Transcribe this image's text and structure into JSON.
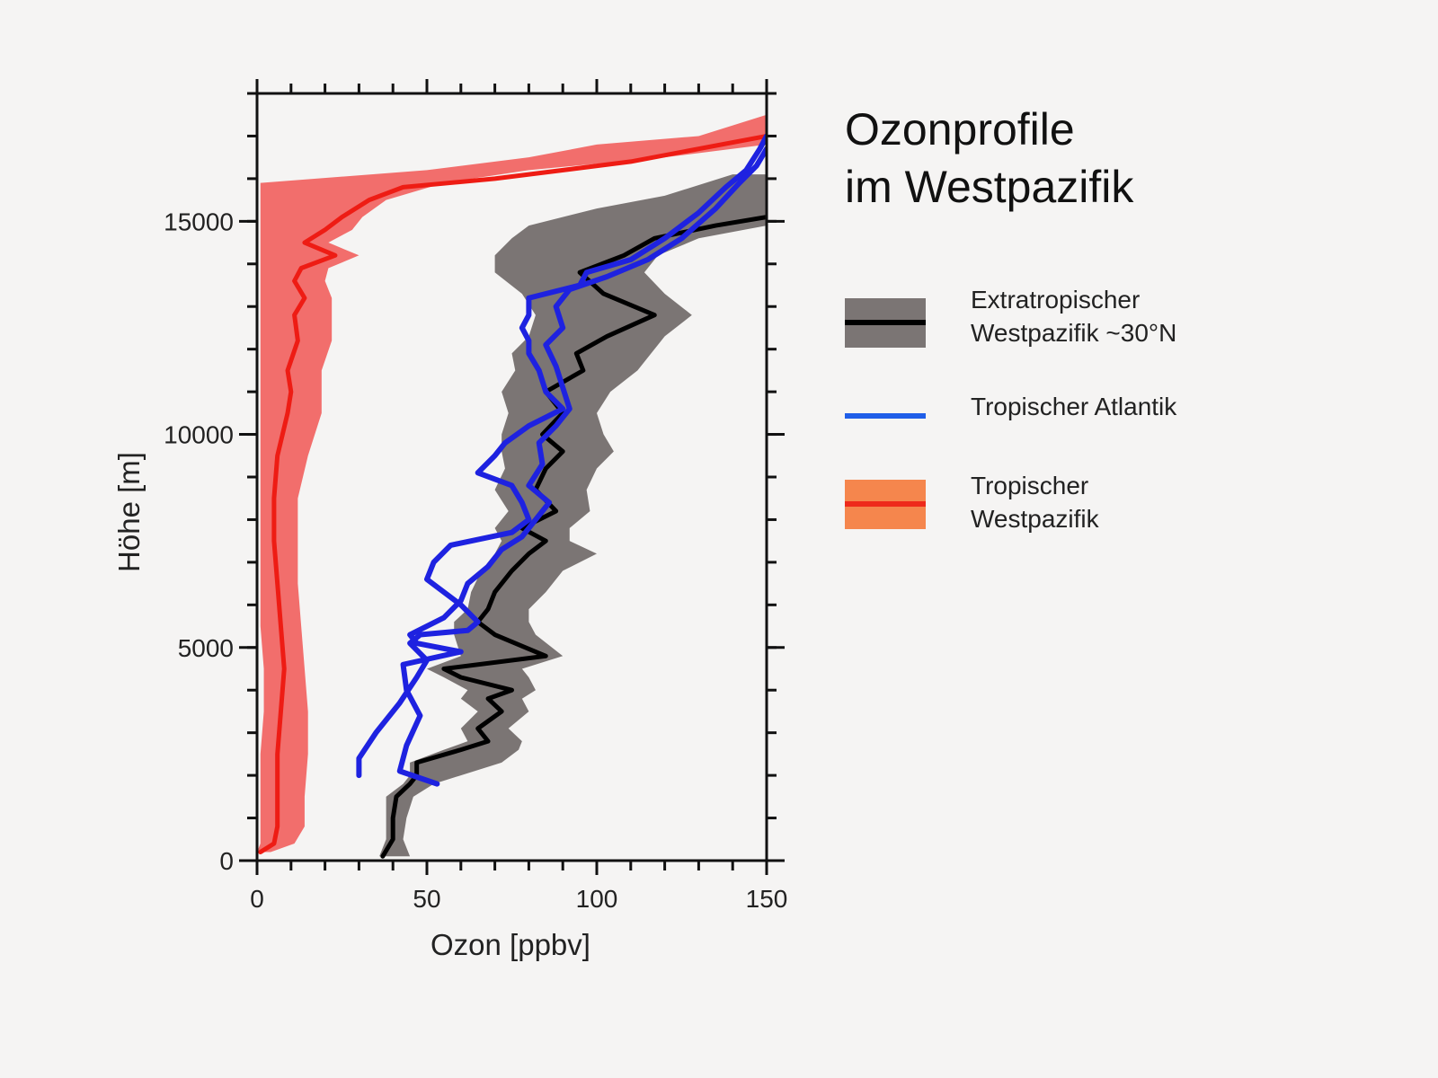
{
  "title": {
    "line1": "Ozonprofile",
    "line2": "im Westpazifik"
  },
  "legend": [
    {
      "line1": "Extratropischer",
      "line2": "Westpazifik ~30°N",
      "swatch": "band-line",
      "band_color": "#7b7574",
      "line_color": "#000000"
    },
    {
      "line1": "Tropischer Atlantik",
      "line2": "",
      "swatch": "line",
      "line_color": "#1f5ee8"
    },
    {
      "line1": "Tropischer",
      "line2": "Westpazifik",
      "swatch": "band-line",
      "band_color": "#f5864d",
      "line_color": "#ee2a1b"
    }
  ],
  "chart_data": {
    "type": "line",
    "xlabel": "Ozon [ppbv]",
    "ylabel": "Höhe [m]",
    "xlim": [
      0,
      150
    ],
    "ylim": [
      0,
      18000
    ],
    "x_ticks": [
      0,
      50,
      100,
      150
    ],
    "y_ticks": [
      0,
      5000,
      10000,
      15000
    ],
    "grid": false,
    "series": [
      {
        "name": "Tropischer Westpazifik",
        "color": "#ee1c14",
        "band_color": "#f26e6c",
        "points": [
          [
            1,
            200
          ],
          [
            5,
            400
          ],
          [
            6,
            800
          ],
          [
            6,
            1500
          ],
          [
            6,
            2500
          ],
          [
            7,
            3500
          ],
          [
            8,
            4500
          ],
          [
            7,
            5500
          ],
          [
            6,
            6500
          ],
          [
            5,
            7500
          ],
          [
            5,
            8500
          ],
          [
            6,
            9500
          ],
          [
            9,
            10500
          ],
          [
            10,
            11000
          ],
          [
            9,
            11500
          ],
          [
            12,
            12200
          ],
          [
            11,
            12800
          ],
          [
            14,
            13200
          ],
          [
            11,
            13600
          ],
          [
            13,
            13900
          ],
          [
            23,
            14200
          ],
          [
            14,
            14500
          ],
          [
            20,
            14800
          ],
          [
            25,
            15100
          ],
          [
            33,
            15500
          ],
          [
            43,
            15800
          ],
          [
            70,
            16000
          ],
          [
            110,
            16400
          ],
          [
            150,
            17000
          ]
        ],
        "band": [
          [
            0,
            200,
            4
          ],
          [
            1,
            400,
            11
          ],
          [
            1,
            800,
            14
          ],
          [
            1,
            1500,
            14
          ],
          [
            1,
            2500,
            15
          ],
          [
            2,
            3500,
            15
          ],
          [
            2,
            4500,
            14
          ],
          [
            1,
            5500,
            13
          ],
          [
            1,
            6500,
            12
          ],
          [
            1,
            7500,
            12
          ],
          [
            1,
            8500,
            12
          ],
          [
            1,
            9500,
            15
          ],
          [
            1,
            10500,
            19
          ],
          [
            1,
            11000,
            19
          ],
          [
            1,
            11500,
            19
          ],
          [
            1,
            12200,
            22
          ],
          [
            1,
            12800,
            22
          ],
          [
            1,
            13200,
            22
          ],
          [
            1,
            13600,
            20
          ],
          [
            1,
            13900,
            21
          ],
          [
            1,
            14200,
            30
          ],
          [
            1,
            14500,
            21
          ],
          [
            1,
            14800,
            28
          ],
          [
            1,
            15100,
            31
          ],
          [
            1,
            15500,
            38
          ],
          [
            1,
            15900,
            55
          ],
          [
            50,
            16200,
            80
          ],
          [
            80,
            16500,
            120
          ],
          [
            100,
            16800,
            150
          ],
          [
            130,
            17000,
            150
          ],
          [
            150,
            17500,
            150
          ]
        ]
      },
      {
        "name": "Extratropischer Westpazifik ~30°N",
        "color": "#000000",
        "band_color": "#7b7574",
        "points": [
          [
            37,
            100
          ],
          [
            40,
            500
          ],
          [
            40,
            1000
          ],
          [
            41,
            1500
          ],
          [
            45,
            1800
          ],
          [
            47,
            2000
          ],
          [
            47,
            2300
          ],
          [
            60,
            2600
          ],
          [
            68,
            2800
          ],
          [
            65,
            3100
          ],
          [
            72,
            3500
          ],
          [
            68,
            3800
          ],
          [
            75,
            4000
          ],
          [
            60,
            4300
          ],
          [
            55,
            4500
          ],
          [
            85,
            4800
          ],
          [
            70,
            5300
          ],
          [
            65,
            5600
          ],
          [
            68,
            5900
          ],
          [
            70,
            6300
          ],
          [
            75,
            6800
          ],
          [
            80,
            7200
          ],
          [
            85,
            7500
          ],
          [
            78,
            7800
          ],
          [
            88,
            8200
          ],
          [
            82,
            8700
          ],
          [
            85,
            9200
          ],
          [
            90,
            9600
          ],
          [
            84,
            10000
          ],
          [
            90,
            10500
          ],
          [
            85,
            11000
          ],
          [
            96,
            11500
          ],
          [
            94,
            11900
          ],
          [
            103,
            12300
          ],
          [
            117,
            12800
          ],
          [
            102,
            13300
          ],
          [
            95,
            13800
          ],
          [
            108,
            14200
          ],
          [
            117,
            14600
          ],
          [
            135,
            14900
          ],
          [
            150,
            15100
          ]
        ],
        "band": [
          [
            36,
            100,
            45
          ],
          [
            38,
            500,
            43
          ],
          [
            38,
            1000,
            44
          ],
          [
            38,
            1500,
            46
          ],
          [
            43,
            1800,
            52
          ],
          [
            45,
            2000,
            60
          ],
          [
            45,
            2300,
            72
          ],
          [
            55,
            2600,
            77
          ],
          [
            62,
            2800,
            78
          ],
          [
            60,
            3100,
            74
          ],
          [
            65,
            3500,
            80
          ],
          [
            60,
            3800,
            78
          ],
          [
            62,
            4000,
            82
          ],
          [
            55,
            4300,
            80
          ],
          [
            50,
            4500,
            78
          ],
          [
            60,
            4800,
            90
          ],
          [
            58,
            5300,
            82
          ],
          [
            58,
            5600,
            80
          ],
          [
            62,
            5900,
            80
          ],
          [
            63,
            6300,
            85
          ],
          [
            66,
            6800,
            90
          ],
          [
            70,
            7200,
            100
          ],
          [
            72,
            7500,
            92
          ],
          [
            70,
            7800,
            92
          ],
          [
            74,
            8200,
            98
          ],
          [
            70,
            8700,
            97
          ],
          [
            73,
            9200,
            100
          ],
          [
            72,
            9600,
            105
          ],
          [
            72,
            10000,
            102
          ],
          [
            74,
            10500,
            100
          ],
          [
            72,
            11000,
            104
          ],
          [
            76,
            11500,
            112
          ],
          [
            75,
            11900,
            116
          ],
          [
            80,
            12300,
            120
          ],
          [
            82,
            12800,
            128
          ],
          [
            78,
            13300,
            120
          ],
          [
            70,
            13800,
            114
          ],
          [
            70,
            14200,
            118
          ],
          [
            75,
            14600,
            130
          ],
          [
            80,
            14900,
            150
          ],
          [
            100,
            15300,
            150
          ],
          [
            120,
            15600,
            150
          ],
          [
            140,
            16100,
            150
          ]
        ]
      },
      {
        "name": "Tropischer Atlantik",
        "color": "#1e22e0",
        "points": [
          [
            30,
            2000
          ],
          [
            30,
            2400
          ],
          [
            35,
            3000
          ],
          [
            42,
            3700
          ],
          [
            47,
            4300
          ],
          [
            50,
            4700
          ],
          [
            45,
            5100
          ],
          [
            48,
            5300
          ],
          [
            62,
            5400
          ],
          [
            65,
            5600
          ],
          [
            60,
            6000
          ],
          [
            55,
            6300
          ],
          [
            50,
            6600
          ],
          [
            52,
            7000
          ],
          [
            57,
            7400
          ],
          [
            75,
            7700
          ],
          [
            80,
            8000
          ],
          [
            78,
            8400
          ],
          [
            75,
            8800
          ],
          [
            65,
            9100
          ],
          [
            70,
            9500
          ],
          [
            73,
            9800
          ],
          [
            80,
            10200
          ],
          [
            90,
            10600
          ],
          [
            85,
            11000
          ],
          [
            83,
            11500
          ],
          [
            80,
            11900
          ],
          [
            80,
            12200
          ],
          [
            78,
            12500
          ],
          [
            80,
            12800
          ],
          [
            80,
            13200
          ],
          [
            95,
            13500
          ],
          [
            97,
            13800
          ],
          [
            110,
            14100
          ],
          [
            120,
            14600
          ],
          [
            130,
            15200
          ],
          [
            138,
            15800
          ],
          [
            144,
            16200
          ],
          [
            148,
            16700
          ],
          [
            150,
            17000
          ]
        ]
      },
      {
        "name": "Tropischer Atlantik",
        "color": "#1e22e0",
        "points": [
          [
            53,
            1800
          ],
          [
            42,
            2100
          ],
          [
            44,
            2700
          ],
          [
            48,
            3400
          ],
          [
            44,
            4000
          ],
          [
            43,
            4600
          ],
          [
            60,
            4900
          ],
          [
            47,
            5100
          ],
          [
            45,
            5300
          ],
          [
            55,
            5700
          ],
          [
            60,
            6100
          ],
          [
            62,
            6500
          ],
          [
            68,
            6900
          ],
          [
            72,
            7300
          ],
          [
            78,
            7600
          ],
          [
            82,
            8000
          ],
          [
            86,
            8400
          ],
          [
            80,
            8800
          ],
          [
            84,
            9300
          ],
          [
            83,
            9800
          ],
          [
            88,
            10200
          ],
          [
            92,
            10600
          ],
          [
            90,
            11100
          ],
          [
            88,
            11600
          ],
          [
            85,
            12100
          ],
          [
            90,
            12500
          ],
          [
            88,
            13000
          ],
          [
            92,
            13400
          ],
          [
            103,
            13700
          ],
          [
            115,
            14100
          ],
          [
            125,
            14600
          ],
          [
            135,
            15300
          ],
          [
            142,
            15900
          ],
          [
            147,
            16300
          ],
          [
            150,
            16700
          ]
        ]
      }
    ]
  }
}
